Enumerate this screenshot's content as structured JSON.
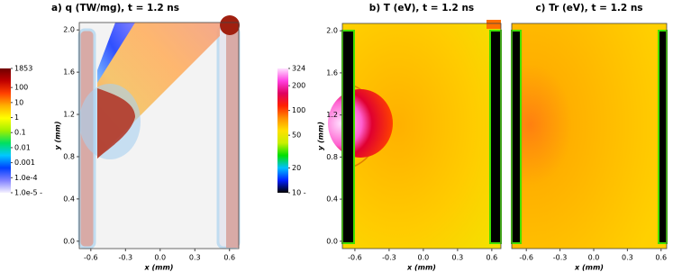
{
  "chart_data": [
    {
      "type": "heatmap",
      "title": "a)  q (TW/mg),  t = 1.2 ns",
      "xlabel": "x (mm)",
      "ylabel": "y (mm)",
      "xlim": [
        -0.7,
        0.68
      ],
      "ylim": [
        -0.07,
        2.07
      ],
      "xticks": [
        -0.6,
        -0.3,
        {
          "value": 0,
          "label": "0.0"
        },
        0.3,
        0.6
      ],
      "yticks": [
        {
          "value": 0,
          "label": "0.0"
        },
        0.4,
        0.8,
        1.2,
        1.6,
        {
          "value": 2,
          "label": "2.0"
        }
      ]
    },
    {
      "type": "heatmap",
      "title": "b)  T (eV),  t = 1.2 ns",
      "xlabel": "x (mm)",
      "ylabel": "y (mm)",
      "xlim": [
        -0.71,
        0.68
      ],
      "ylim": [
        -0.07,
        2.07
      ],
      "xticks": [
        -0.6,
        -0.3,
        {
          "value": 0,
          "label": "0.0"
        },
        0.3,
        0.6
      ],
      "yticks": [
        {
          "value": 0,
          "label": "0.0"
        },
        0.4,
        0.8,
        1.2,
        1.6,
        {
          "value": 2,
          "label": "2.0"
        }
      ]
    },
    {
      "type": "heatmap",
      "title": "c)  Tr (eV),  t = 1.2 ns",
      "xlabel": "x (mm)",
      "xlim": [
        -0.73,
        0.65
      ],
      "ylim": [
        -0.07,
        2.07
      ],
      "xticks": [
        -0.6,
        -0.3,
        {
          "value": 0,
          "label": "0.0"
        },
        0.3,
        0.6
      ]
    },
    {
      "type": "colorbar",
      "log_scale": true,
      "ylim": [
        1e-05,
        1853
      ],
      "yticks": [
        1853,
        100,
        10,
        1,
        0.1,
        0.01,
        0.001,
        {
          "value": 0.0001,
          "label": "1.0e-4"
        },
        {
          "value": 1e-05,
          "label": "1.0e-5 -"
        }
      ],
      "colors": [
        "#f4f0ff",
        "#8080ff",
        "#0040ff",
        "#00c8ff",
        "#00e060",
        "#a0f000",
        "#ffff00",
        "#ffb000",
        "#ff4000",
        "#c00000",
        "#700000"
      ]
    },
    {
      "type": "colorbar",
      "log_scale": true,
      "ylim": [
        10,
        324
      ],
      "yticks": [
        324,
        200,
        100,
        50,
        20,
        {
          "value": 10,
          "label": "10 -"
        }
      ],
      "colors": [
        "#000000",
        "#0020ff",
        "#00c0ff",
        "#00e000",
        "#c8f000",
        "#ffe000",
        "#ff9000",
        "#ff2000",
        "#e00060",
        "#ff40e0",
        "#ffe0ff"
      ]
    }
  ]
}
